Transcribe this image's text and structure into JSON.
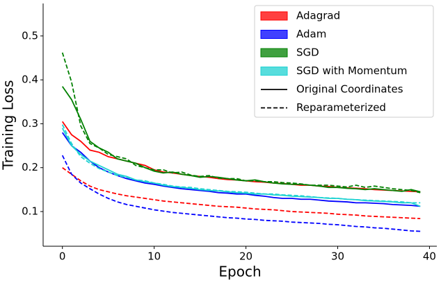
{
  "chart_data": {
    "type": "line",
    "xlabel": "Epoch",
    "ylabel": "Training Loss",
    "x": [
      0,
      1,
      2,
      3,
      4,
      5,
      6,
      7,
      8,
      9,
      10,
      11,
      12,
      13,
      14,
      15,
      16,
      17,
      18,
      19,
      20,
      21,
      22,
      23,
      24,
      25,
      26,
      27,
      28,
      29,
      30,
      31,
      32,
      33,
      34,
      35,
      36,
      37,
      38,
      39
    ],
    "xlim": [
      -2.1,
      40.8
    ],
    "xticks": [
      0,
      10,
      20,
      30,
      40
    ],
    "ylim": [
      0.021,
      0.574
    ],
    "yticks": [
      0.1,
      0.2,
      0.3,
      0.4,
      0.5
    ],
    "legend": "upper right",
    "optimizers": [
      {
        "name": "Adagrad",
        "color": "#ff0000"
      },
      {
        "name": "Adam",
        "color": "#0000ff"
      },
      {
        "name": "SGD",
        "color": "#008000"
      },
      {
        "name": "SGD with Momentum",
        "color": "#1fd2d2"
      }
    ],
    "styles": [
      {
        "name": "Original Coordinates",
        "dash": "solid"
      },
      {
        "name": "Reparameterized",
        "dash": "dashed"
      }
    ],
    "series": [
      {
        "optimizer": 0,
        "style": 0,
        "values": [
          0.305,
          0.275,
          0.26,
          0.24,
          0.235,
          0.225,
          0.22,
          0.215,
          0.21,
          0.205,
          0.195,
          0.19,
          0.188,
          0.185,
          0.182,
          0.18,
          0.178,
          0.175,
          0.173,
          0.172,
          0.17,
          0.168,
          0.167,
          0.165,
          0.164,
          0.162,
          0.16,
          0.16,
          0.158,
          0.157,
          0.155,
          0.154,
          0.153,
          0.152,
          0.15,
          0.149,
          0.148,
          0.147,
          0.146,
          0.145
        ]
      },
      {
        "optimizer": 0,
        "style": 1,
        "values": [
          0.2,
          0.185,
          0.17,
          0.158,
          0.15,
          0.145,
          0.14,
          0.136,
          0.133,
          0.13,
          0.127,
          0.124,
          0.122,
          0.12,
          0.118,
          0.116,
          0.114,
          0.112,
          0.111,
          0.11,
          0.108,
          0.106,
          0.105,
          0.104,
          0.102,
          0.1,
          0.099,
          0.098,
          0.097,
          0.096,
          0.094,
          0.093,
          0.092,
          0.09,
          0.089,
          0.088,
          0.087,
          0.086,
          0.085,
          0.084
        ]
      },
      {
        "optimizer": 1,
        "style": 0,
        "values": [
          0.28,
          0.25,
          0.235,
          0.215,
          0.2,
          0.19,
          0.182,
          0.175,
          0.17,
          0.165,
          0.162,
          0.158,
          0.155,
          0.152,
          0.15,
          0.148,
          0.146,
          0.143,
          0.142,
          0.14,
          0.14,
          0.137,
          0.135,
          0.132,
          0.13,
          0.13,
          0.128,
          0.128,
          0.126,
          0.124,
          0.123,
          0.122,
          0.12,
          0.12,
          0.119,
          0.118,
          0.116,
          0.115,
          0.114,
          0.112
        ]
      },
      {
        "optimizer": 1,
        "style": 1,
        "values": [
          0.228,
          0.185,
          0.165,
          0.152,
          0.14,
          0.13,
          0.122,
          0.116,
          0.112,
          0.108,
          0.104,
          0.101,
          0.098,
          0.096,
          0.094,
          0.092,
          0.09,
          0.088,
          0.086,
          0.085,
          0.083,
          0.082,
          0.08,
          0.079,
          0.078,
          0.076,
          0.075,
          0.074,
          0.073,
          0.071,
          0.07,
          0.068,
          0.066,
          0.065,
          0.063,
          0.062,
          0.06,
          0.058,
          0.056,
          0.055
        ]
      },
      {
        "optimizer": 2,
        "style": 0,
        "values": [
          0.385,
          0.355,
          0.31,
          0.26,
          0.245,
          0.235,
          0.22,
          0.215,
          0.21,
          0.2,
          0.192,
          0.188,
          0.19,
          0.185,
          0.182,
          0.178,
          0.18,
          0.178,
          0.175,
          0.172,
          0.17,
          0.172,
          0.168,
          0.165,
          0.163,
          0.162,
          0.162,
          0.16,
          0.158,
          0.155,
          0.155,
          0.153,
          0.152,
          0.15,
          0.152,
          0.15,
          0.148,
          0.146,
          0.15,
          0.145
        ]
      },
      {
        "optimizer": 2,
        "style": 1,
        "values": [
          0.462,
          0.395,
          0.295,
          0.255,
          0.245,
          0.23,
          0.225,
          0.22,
          0.205,
          0.2,
          0.195,
          0.195,
          0.188,
          0.19,
          0.183,
          0.18,
          0.182,
          0.176,
          0.175,
          0.175,
          0.17,
          0.17,
          0.168,
          0.168,
          0.166,
          0.165,
          0.163,
          0.16,
          0.16,
          0.16,
          0.158,
          0.156,
          0.16,
          0.155,
          0.158,
          0.155,
          0.152,
          0.15,
          0.148,
          0.143
        ]
      },
      {
        "optimizer": 3,
        "style": 0,
        "values": [
          0.29,
          0.25,
          0.23,
          0.215,
          0.205,
          0.195,
          0.185,
          0.18,
          0.172,
          0.168,
          0.165,
          0.16,
          0.157,
          0.155,
          0.153,
          0.15,
          0.148,
          0.147,
          0.145,
          0.143,
          0.142,
          0.14,
          0.14,
          0.138,
          0.137,
          0.135,
          0.134,
          0.133,
          0.132,
          0.13,
          0.13,
          0.128,
          0.127,
          0.125,
          0.124,
          0.123,
          0.122,
          0.12,
          0.12,
          0.112
        ]
      },
      {
        "optimizer": 3,
        "style": 1,
        "values": [
          0.298,
          0.255,
          0.225,
          0.21,
          0.198,
          0.19,
          0.182,
          0.178,
          0.172,
          0.17,
          0.165,
          0.162,
          0.158,
          0.156,
          0.155,
          0.152,
          0.15,
          0.148,
          0.146,
          0.145,
          0.144,
          0.142,
          0.14,
          0.14,
          0.138,
          0.137,
          0.136,
          0.134,
          0.132,
          0.131,
          0.13,
          0.128,
          0.127,
          0.126,
          0.125,
          0.124,
          0.123,
          0.122,
          0.12,
          0.12
        ]
      }
    ]
  }
}
